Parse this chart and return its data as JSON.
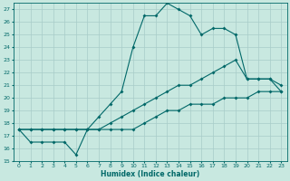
{
  "xlabel": "Humidex (Indice chaleur)",
  "ylabel": "",
  "bg_color": "#c8e8e0",
  "grid_color": "#a8ccc8",
  "line_color": "#006868",
  "xlim": [
    -0.5,
    23.5
  ],
  "ylim": [
    15,
    27.5
  ],
  "yticks": [
    15,
    16,
    17,
    18,
    19,
    20,
    21,
    22,
    23,
    24,
    25,
    26,
    27
  ],
  "xticks": [
    0,
    1,
    2,
    3,
    4,
    5,
    6,
    7,
    8,
    9,
    10,
    11,
    12,
    13,
    14,
    15,
    16,
    17,
    18,
    19,
    20,
    21,
    22,
    23
  ],
  "series": [
    {
      "x": [
        0,
        1,
        2,
        3,
        4,
        5,
        6,
        7,
        8,
        9,
        10,
        11,
        12,
        13,
        14,
        15,
        16,
        17,
        18,
        19,
        20,
        21,
        22,
        23
      ],
      "y": [
        17.5,
        16.5,
        16.5,
        16.5,
        16.5,
        15.5,
        17.5,
        18.5,
        19.5,
        20.5,
        24.0,
        26.5,
        26.5,
        27.5,
        27.0,
        26.5,
        25.0,
        25.5,
        25.5,
        25.0,
        21.5,
        21.5,
        21.5,
        20.5
      ]
    },
    {
      "x": [
        0,
        1,
        2,
        3,
        4,
        5,
        6,
        7,
        8,
        9,
        10,
        11,
        12,
        13,
        14,
        15,
        16,
        17,
        18,
        19,
        20,
        21,
        22,
        23
      ],
      "y": [
        17.5,
        17.5,
        17.5,
        17.5,
        17.5,
        17.5,
        17.5,
        17.5,
        18.0,
        18.5,
        19.0,
        19.5,
        20.0,
        20.5,
        21.0,
        21.0,
        21.5,
        22.0,
        22.5,
        23.0,
        21.5,
        21.5,
        21.5,
        21.0
      ]
    },
    {
      "x": [
        0,
        1,
        2,
        3,
        4,
        5,
        6,
        7,
        8,
        9,
        10,
        11,
        12,
        13,
        14,
        15,
        16,
        17,
        18,
        19,
        20,
        21,
        22,
        23
      ],
      "y": [
        17.5,
        17.5,
        17.5,
        17.5,
        17.5,
        17.5,
        17.5,
        17.5,
        17.5,
        17.5,
        17.5,
        18.0,
        18.5,
        19.0,
        19.0,
        19.5,
        19.5,
        19.5,
        20.0,
        20.0,
        20.0,
        20.5,
        20.5,
        20.5
      ]
    }
  ]
}
